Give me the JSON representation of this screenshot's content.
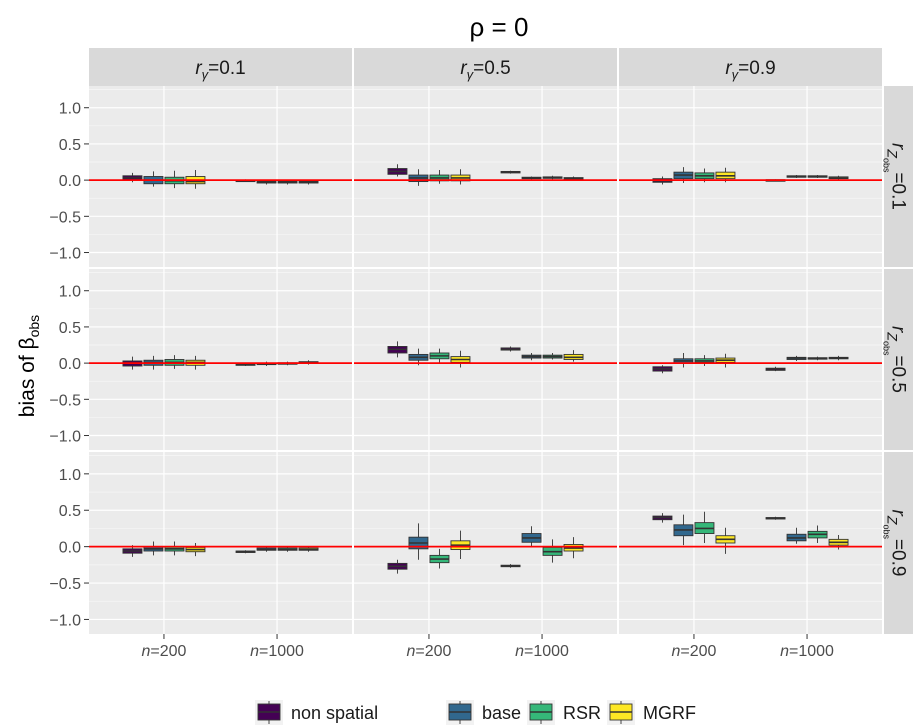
{
  "chart_data": {
    "type": "boxplot",
    "title": "ρ = 0",
    "ylabel": "bias of β",
    "ylabel_subscript": "obs",
    "ylim": [
      -1.2,
      1.3
    ],
    "yticks": [
      1.0,
      0.5,
      0.0,
      -0.5,
      -1.0
    ],
    "ytick_labels": [
      "1.0",
      "0.5",
      "0.0",
      "−0.5",
      "−1.0"
    ],
    "reference_line": {
      "y": 0,
      "color": "#ff0000"
    },
    "column_facets": [
      {
        "prefix": "r",
        "subscript": "γ",
        "suffix": "=0.1"
      },
      {
        "prefix": "r",
        "subscript": "γ",
        "suffix": "=0.5"
      },
      {
        "prefix": "r",
        "subscript": "γ",
        "suffix": "=0.9"
      }
    ],
    "row_facets": [
      {
        "prefix": "r",
        "subscript": "Z",
        "subsub": "obs",
        "suffix": "=0.1"
      },
      {
        "prefix": "r",
        "subscript": "Z",
        "subsub": "obs",
        "suffix": "=0.5"
      },
      {
        "prefix": "r",
        "subscript": "Z",
        "subsub": "obs",
        "suffix": "=0.9"
      }
    ],
    "x_categories": [
      {
        "italic": "n",
        "rest": "=200"
      },
      {
        "italic": "n",
        "rest": "=1000"
      }
    ],
    "series": [
      {
        "name": "non spatial",
        "color": "#440154"
      },
      {
        "name": "base",
        "color": "#31688e"
      },
      {
        "name": "RSR",
        "color": "#35b779"
      },
      {
        "name": "MGRF",
        "color": "#fde725"
      }
    ],
    "legend_position": "bottom",
    "panels": [
      {
        "row": 0,
        "col": 0,
        "boxes": [
          [
            [
              -0.03,
              0.0,
              0.03,
              0.06,
              0.1
            ],
            [
              -0.09,
              -0.05,
              0.0,
              0.05,
              0.12
            ],
            [
              -0.11,
              -0.05,
              -0.01,
              0.04,
              0.13
            ],
            [
              -0.12,
              -0.05,
              -0.02,
              0.05,
              0.14
            ]
          ],
          [
            [
              -0.02,
              -0.01,
              -0.005,
              0.0,
              0.01
            ],
            [
              -0.06,
              -0.04,
              -0.03,
              -0.015,
              0.0
            ],
            [
              -0.06,
              -0.04,
              -0.03,
              -0.015,
              0.0
            ],
            [
              -0.06,
              -0.04,
              -0.03,
              -0.015,
              0.0
            ]
          ]
        ]
      },
      {
        "row": 0,
        "col": 1,
        "boxes": [
          [
            [
              0.05,
              0.08,
              0.12,
              0.16,
              0.22
            ],
            [
              -0.08,
              -0.02,
              0.03,
              0.07,
              0.15
            ],
            [
              -0.05,
              -0.01,
              0.03,
              0.07,
              0.14
            ],
            [
              -0.06,
              -0.01,
              0.03,
              0.07,
              0.15
            ]
          ],
          [
            [
              0.09,
              0.105,
              0.11,
              0.12,
              0.13
            ],
            [
              0.01,
              0.02,
              0.03,
              0.04,
              0.05
            ],
            [
              0.01,
              0.025,
              0.035,
              0.045,
              0.06
            ],
            [
              0.0,
              0.015,
              0.025,
              0.035,
              0.05
            ]
          ]
        ]
      },
      {
        "row": 0,
        "col": 2,
        "boxes": [
          [
            [
              -0.06,
              -0.03,
              -0.01,
              0.02,
              0.05
            ],
            [
              -0.04,
              0.02,
              0.07,
              0.11,
              0.18
            ],
            [
              -0.03,
              0.02,
              0.06,
              0.1,
              0.16
            ],
            [
              -0.03,
              0.02,
              0.06,
              0.11,
              0.17
            ]
          ],
          [
            [
              -0.01,
              -0.005,
              0.0,
              0.005,
              0.01
            ],
            [
              0.03,
              0.04,
              0.05,
              0.06,
              0.07
            ],
            [
              0.03,
              0.04,
              0.05,
              0.06,
              0.07
            ],
            [
              0.0,
              0.02,
              0.03,
              0.045,
              0.06
            ]
          ]
        ]
      },
      {
        "row": 1,
        "col": 0,
        "boxes": [
          [
            [
              -0.09,
              -0.04,
              0.0,
              0.03,
              0.09
            ],
            [
              -0.09,
              -0.03,
              0.01,
              0.04,
              0.1
            ],
            [
              -0.08,
              -0.03,
              0.01,
              0.05,
              0.11
            ],
            [
              -0.09,
              -0.03,
              0.01,
              0.04,
              0.1
            ]
          ],
          [
            [
              -0.04,
              -0.03,
              -0.02,
              -0.01,
              0.0
            ],
            [
              -0.04,
              -0.02,
              -0.01,
              0.0,
              0.02
            ],
            [
              -0.03,
              -0.015,
              -0.005,
              0.005,
              0.02
            ],
            [
              -0.02,
              0.0,
              0.01,
              0.02,
              0.04
            ]
          ]
        ]
      },
      {
        "row": 1,
        "col": 1,
        "boxes": [
          [
            [
              0.08,
              0.14,
              0.19,
              0.23,
              0.3
            ],
            [
              -0.03,
              0.04,
              0.08,
              0.12,
              0.2
            ],
            [
              0.0,
              0.06,
              0.1,
              0.14,
              0.2
            ],
            [
              -0.06,
              0.01,
              0.05,
              0.09,
              0.17
            ]
          ],
          [
            [
              0.16,
              0.18,
              0.19,
              0.21,
              0.23
            ],
            [
              0.04,
              0.07,
              0.09,
              0.11,
              0.14
            ],
            [
              0.05,
              0.07,
              0.09,
              0.11,
              0.14
            ],
            [
              0.02,
              0.05,
              0.08,
              0.12,
              0.18
            ]
          ]
        ]
      },
      {
        "row": 1,
        "col": 2,
        "boxes": [
          [
            [
              -0.14,
              -0.11,
              -0.08,
              -0.05,
              -0.03
            ],
            [
              -0.06,
              0.0,
              0.03,
              0.06,
              0.14
            ],
            [
              -0.04,
              0.01,
              0.03,
              0.06,
              0.11
            ],
            [
              -0.06,
              0.01,
              0.04,
              0.07,
              0.13
            ]
          ],
          [
            [
              -0.11,
              -0.1,
              -0.08,
              -0.07,
              -0.05
            ],
            [
              0.03,
              0.05,
              0.07,
              0.08,
              0.1
            ],
            [
              0.04,
              0.055,
              0.065,
              0.075,
              0.09
            ],
            [
              0.04,
              0.06,
              0.07,
              0.08,
              0.1
            ]
          ]
        ]
      },
      {
        "row": 2,
        "col": 0,
        "boxes": [
          [
            [
              -0.14,
              -0.09,
              -0.06,
              -0.03,
              0.02
            ],
            [
              -0.12,
              -0.06,
              -0.03,
              0.0,
              0.07
            ],
            [
              -0.12,
              -0.06,
              -0.03,
              0.0,
              0.07
            ],
            [
              -0.13,
              -0.07,
              -0.04,
              -0.01,
              0.05
            ]
          ],
          [
            [
              -0.09,
              -0.08,
              -0.07,
              -0.06,
              -0.05
            ],
            [
              -0.07,
              -0.05,
              -0.04,
              -0.02,
              0.0
            ],
            [
              -0.07,
              -0.05,
              -0.04,
              -0.02,
              0.0
            ],
            [
              -0.07,
              -0.05,
              -0.04,
              -0.02,
              0.0
            ]
          ]
        ]
      },
      {
        "row": 2,
        "col": 1,
        "boxes": [
          [
            [
              -0.37,
              -0.31,
              -0.27,
              -0.23,
              -0.18
            ],
            [
              -0.18,
              -0.03,
              0.05,
              0.13,
              0.32
            ],
            [
              -0.3,
              -0.22,
              -0.17,
              -0.12,
              -0.03
            ],
            [
              -0.17,
              -0.04,
              0.02,
              0.08,
              0.22
            ]
          ],
          [
            [
              -0.29,
              -0.275,
              -0.265,
              -0.255,
              -0.24
            ],
            [
              -0.01,
              0.06,
              0.12,
              0.18,
              0.28
            ],
            [
              -0.22,
              -0.12,
              -0.07,
              -0.01,
              0.1
            ],
            [
              -0.16,
              -0.06,
              -0.02,
              0.03,
              0.13
            ]
          ]
        ]
      },
      {
        "row": 2,
        "col": 2,
        "boxes": [
          [
            [
              0.33,
              0.37,
              0.4,
              0.42,
              0.46
            ],
            [
              0.02,
              0.15,
              0.23,
              0.3,
              0.44
            ],
            [
              0.05,
              0.18,
              0.25,
              0.33,
              0.48
            ],
            [
              -0.1,
              0.05,
              0.1,
              0.15,
              0.26
            ]
          ],
          [
            [
              0.37,
              0.38,
              0.39,
              0.4,
              0.41
            ],
            [
              0.04,
              0.08,
              0.12,
              0.17,
              0.26
            ],
            [
              0.05,
              0.12,
              0.17,
              0.21,
              0.29
            ],
            [
              -0.04,
              0.02,
              0.06,
              0.1,
              0.16
            ]
          ]
        ]
      }
    ]
  }
}
